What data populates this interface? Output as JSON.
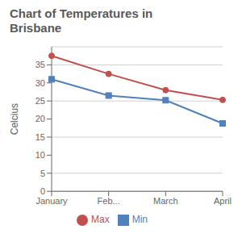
{
  "chart_data": {
    "type": "line",
    "title": "Chart of Temperatures in\nBrisbane",
    "ylabel": "Celcius",
    "categories": [
      "January",
      "Feb...",
      "March",
      "April"
    ],
    "series": [
      {
        "name": "Min",
        "values": [
          31,
          26.5,
          25.2,
          18.8
        ],
        "color": "#4f81bd",
        "marker": "square"
      },
      {
        "name": "Max",
        "values": [
          37.5,
          32.5,
          28,
          25.3
        ],
        "color": "#c0504d",
        "marker": "circle"
      }
    ],
    "ylim": [
      0,
      40
    ],
    "yticks": [
      0,
      5,
      10,
      15,
      20,
      25,
      30,
      35
    ],
    "grid": true,
    "legend": "bottom"
  }
}
